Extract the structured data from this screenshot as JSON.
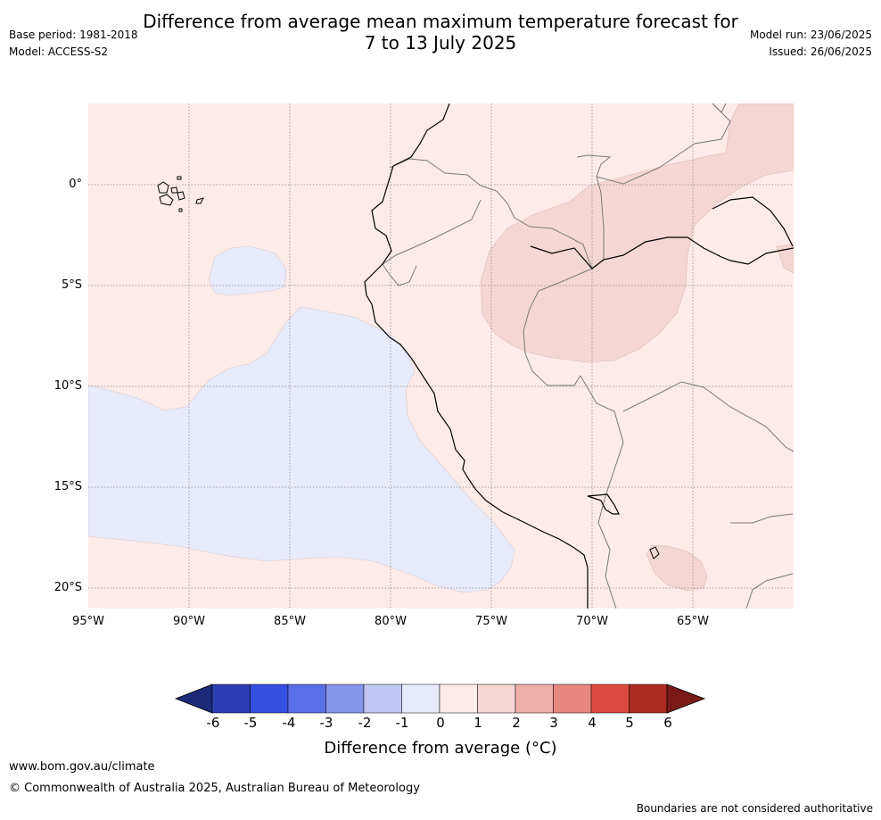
{
  "title_line1": "Difference from average mean maximum temperature forecast for",
  "title_line2": "7 to 13 July 2025",
  "base_period": "Base period: 1981-2018",
  "model": "Model: ACCESS-S2",
  "model_run": "Model run: 23/06/2025",
  "issued": "Issued: 26/06/2025",
  "lat_labels": [
    "0°",
    "5°S",
    "10°S",
    "15°S",
    "20°S"
  ],
  "lon_labels": [
    "95°W",
    "90°W",
    "85°W",
    "80°W",
    "75°W",
    "70°W",
    "65°W"
  ],
  "colorbar": {
    "ticks": [
      "-6",
      "-5",
      "-4",
      "-3",
      "-2",
      "-1",
      "0",
      "1",
      "2",
      "3",
      "4",
      "5",
      "6"
    ],
    "colors": [
      "#1c2a78",
      "#2a3eb2",
      "#3550e0",
      "#5a70e6",
      "#8595ea",
      "#c0c7f4",
      "#e8ebfb",
      "#fcebe9",
      "#f4d6d2",
      "#eeaea8",
      "#e8877d",
      "#dc4b40",
      "#ad2a22",
      "#7a1a18"
    ],
    "label": "Difference from average (°C)"
  },
  "legend_colors": {
    "neutral_warm": "#fcebe9",
    "warm_1_2": "#f4d6d2",
    "cool_0_-1": "#e8ebfb"
  },
  "footer_url": "www.bom.gov.au/climate",
  "footer_copyright": "© Commonwealth of Australia 2025, Australian Bureau of Meteorology",
  "footer_disclaimer": "Boundaries are not considered authoritative"
}
